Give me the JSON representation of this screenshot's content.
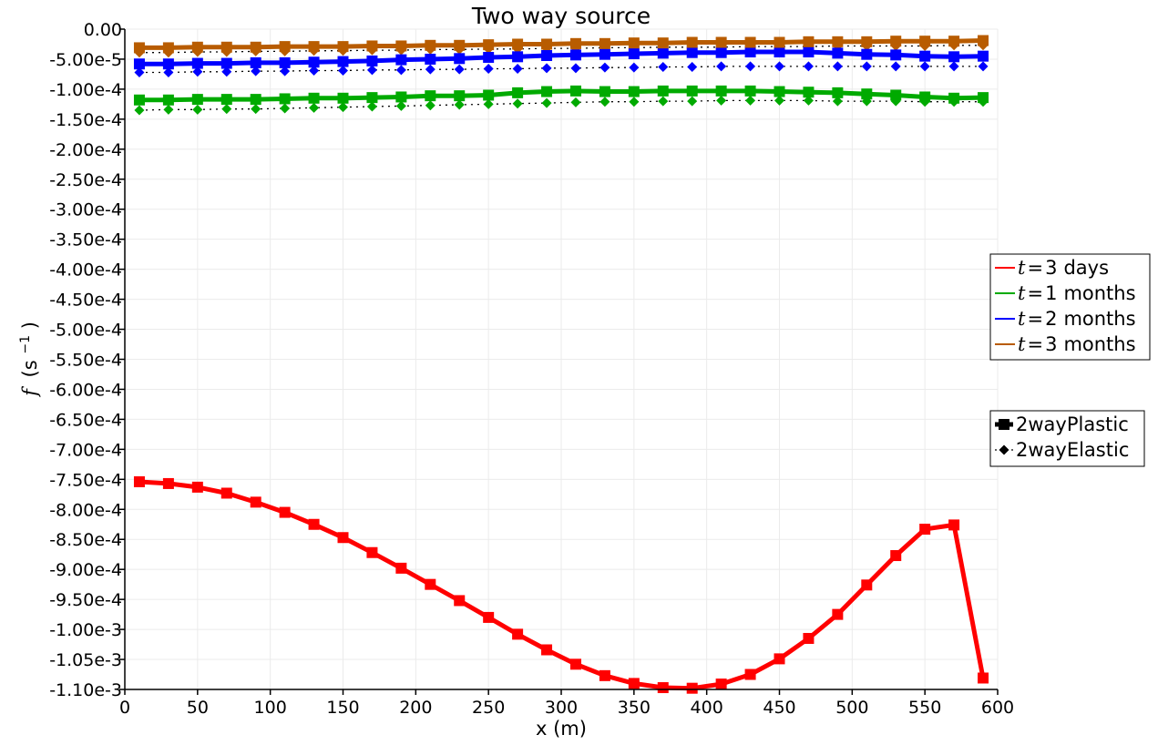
{
  "chart_data": {
    "type": "line",
    "title": "Two way source",
    "xlabel": "x (m)",
    "ylabel": {
      "symbol": "f",
      "unit_prefix": "(s",
      "unit_exp": "−1",
      "unit_suffix": ")"
    },
    "xlim": [
      0,
      600
    ],
    "ylim": [
      -0.0011,
      0.0
    ],
    "grid": true,
    "x_ticks": [
      0,
      50,
      100,
      150,
      200,
      250,
      300,
      350,
      400,
      450,
      500,
      550,
      600
    ],
    "x_tick_labels": [
      "0",
      "50",
      "100",
      "150",
      "200",
      "250",
      "300",
      "350",
      "400",
      "450",
      "500",
      "550",
      "600"
    ],
    "y_ticks": [
      0,
      -5e-05,
      -0.0001,
      -0.00015,
      -0.0002,
      -0.00025,
      -0.0003,
      -0.00035,
      -0.0004,
      -0.00045,
      -0.0005,
      -0.00055,
      -0.0006,
      -0.00065,
      -0.0007,
      -0.00075,
      -0.0008,
      -0.00085,
      -0.0009,
      -0.00095,
      -0.001,
      -0.00105,
      -0.0011
    ],
    "y_tick_labels": [
      "0.00",
      "-5.00e-5",
      "-1.00e-4",
      "-1.50e-4",
      "-2.00e-4",
      "-2.50e-4",
      "-3.00e-4",
      "-3.50e-4",
      "-4.00e-4",
      "-4.50e-4",
      "-5.00e-4",
      "-5.50e-4",
      "-6.00e-4",
      "-6.50e-4",
      "-7.00e-4",
      "-7.50e-4",
      "-8.00e-4",
      "-8.50e-4",
      "-9.00e-4",
      "-9.50e-4",
      "-1.00e-3",
      "-1.05e-3",
      "-1.10e-3"
    ],
    "x": [
      10,
      30,
      50,
      70,
      90,
      110,
      130,
      150,
      170,
      190,
      210,
      230,
      250,
      270,
      290,
      310,
      330,
      350,
      370,
      390,
      410,
      430,
      450,
      470,
      490,
      510,
      530,
      550,
      570,
      590
    ],
    "series": [
      {
        "name": "2wayPlastic t=3 days",
        "color": "#ff0000",
        "style": "plastic",
        "values": [
          -0.000754,
          -0.000757,
          -0.000763,
          -0.000773,
          -0.000788,
          -0.000805,
          -0.000825,
          -0.000847,
          -0.000872,
          -0.000898,
          -0.000925,
          -0.000952,
          -0.00098,
          -0.001008,
          -0.001034,
          -0.001058,
          -0.001077,
          -0.00109,
          -0.001097,
          -0.001098,
          -0.001091,
          -0.001075,
          -0.001049,
          -0.001015,
          -0.000975,
          -0.000926,
          -0.000877,
          -0.000833,
          -0.000826,
          -0.001081
        ]
      },
      {
        "name": "2wayPlastic t=1 months",
        "color": "#00aa00",
        "style": "plastic",
        "values": [
          -0.000118,
          -0.000118,
          -0.000117,
          -0.000117,
          -0.000117,
          -0.000116,
          -0.000115,
          -0.000115,
          -0.000114,
          -0.000113,
          -0.000111,
          -0.000111,
          -0.00011,
          -0.000106,
          -0.000104,
          -0.000103,
          -0.000104,
          -0.000104,
          -0.000103,
          -0.000103,
          -0.000103,
          -0.000103,
          -0.000104,
          -0.000105,
          -0.000106,
          -0.000108,
          -0.00011,
          -0.000113,
          -0.000115,
          -0.000114
        ]
      },
      {
        "name": "2wayPlastic t=2 months",
        "color": "#0000ff",
        "style": "plastic",
        "values": [
          -5.8e-05,
          -5.8e-05,
          -5.7e-05,
          -5.7e-05,
          -5.6e-05,
          -5.6e-05,
          -5.5e-05,
          -5.4e-05,
          -5.3e-05,
          -5.1e-05,
          -5e-05,
          -4.9e-05,
          -4.7e-05,
          -4.6e-05,
          -4.4e-05,
          -4.3e-05,
          -4.2e-05,
          -4.1e-05,
          -4e-05,
          -3.9e-05,
          -3.9e-05,
          -3.8e-05,
          -3.8e-05,
          -3.8e-05,
          -4e-05,
          -4.2e-05,
          -4.3e-05,
          -4.5e-05,
          -4.6e-05,
          -4.5e-05
        ]
      },
      {
        "name": "2wayPlastic t=3 months",
        "color": "#b85c00",
        "style": "plastic",
        "values": [
          -3.1e-05,
          -3.1e-05,
          -3e-05,
          -3e-05,
          -3e-05,
          -2.9e-05,
          -2.9e-05,
          -2.9e-05,
          -2.8e-05,
          -2.8e-05,
          -2.7e-05,
          -2.7e-05,
          -2.6e-05,
          -2.5e-05,
          -2.5e-05,
          -2.4e-05,
          -2.4e-05,
          -2.3e-05,
          -2.3e-05,
          -2.2e-05,
          -2.2e-05,
          -2.2e-05,
          -2.2e-05,
          -2.1e-05,
          -2.1e-05,
          -2.1e-05,
          -2e-05,
          -2e-05,
          -2e-05,
          -1.9e-05
        ]
      },
      {
        "name": "2wayElastic t=1 months",
        "color": "#00aa00",
        "style": "elastic",
        "values": [
          -0.000135,
          -0.000134,
          -0.000134,
          -0.000133,
          -0.000133,
          -0.000132,
          -0.000131,
          -0.00013,
          -0.000129,
          -0.000128,
          -0.000127,
          -0.000126,
          -0.000125,
          -0.000124,
          -0.000123,
          -0.000122,
          -0.000121,
          -0.000121,
          -0.00012,
          -0.00012,
          -0.000119,
          -0.000119,
          -0.000119,
          -0.000119,
          -0.00012,
          -0.00012,
          -0.00012,
          -0.000121,
          -0.000121,
          -0.000121
        ]
      },
      {
        "name": "2wayElastic t=2 months",
        "color": "#0000ff",
        "style": "elastic",
        "values": [
          -7.2e-05,
          -7.2e-05,
          -7.1e-05,
          -7.1e-05,
          -7e-05,
          -7e-05,
          -6.9e-05,
          -6.9e-05,
          -6.8e-05,
          -6.8e-05,
          -6.7e-05,
          -6.7e-05,
          -6.6e-05,
          -6.6e-05,
          -6.5e-05,
          -6.5e-05,
          -6.4e-05,
          -6.4e-05,
          -6.3e-05,
          -6.3e-05,
          -6.2e-05,
          -6.2e-05,
          -6.2e-05,
          -6.2e-05,
          -6.2e-05,
          -6.2e-05,
          -6.2e-05,
          -6.2e-05,
          -6.2e-05,
          -6.2e-05
        ]
      },
      {
        "name": "2wayElastic t=3 months",
        "color": "#b85c00",
        "style": "elastic",
        "values": [
          -3.9e-05,
          -3.9e-05,
          -3.8e-05,
          -3.8e-05,
          -3.7e-05,
          -3.7e-05,
          -3.6e-05,
          -3.6e-05,
          -3.5e-05,
          -3.5e-05,
          -3.4e-05,
          -3.4e-05,
          -3.3e-05,
          -3.3e-05,
          -3.2e-05,
          -3.2e-05,
          -3.1e-05,
          -3.1e-05,
          -3e-05,
          -3e-05,
          -3e-05,
          -2.9e-05,
          -2.9e-05,
          -2.9e-05,
          -2.8e-05,
          -2.8e-05,
          -2.8e-05,
          -2.8e-05,
          -2.7e-05,
          -2.7e-05
        ]
      }
    ],
    "legend_colors": [
      {
        "symbol": "t",
        "eq": "=",
        "num": "3",
        "unit": "days",
        "color": "#ff0000"
      },
      {
        "symbol": "t",
        "eq": "=",
        "num": "1",
        "unit": "months",
        "color": "#00aa00"
      },
      {
        "symbol": "t",
        "eq": "=",
        "num": "2",
        "unit": "months",
        "color": "#0000ff"
      },
      {
        "symbol": "t",
        "eq": "=",
        "num": "3",
        "unit": "months",
        "color": "#b85c00"
      }
    ],
    "legend_styles": [
      {
        "label": "2wayPlastic",
        "marker": "square"
      },
      {
        "label": "2wayElastic",
        "marker": "diamond"
      }
    ],
    "legend_placement": "right"
  }
}
